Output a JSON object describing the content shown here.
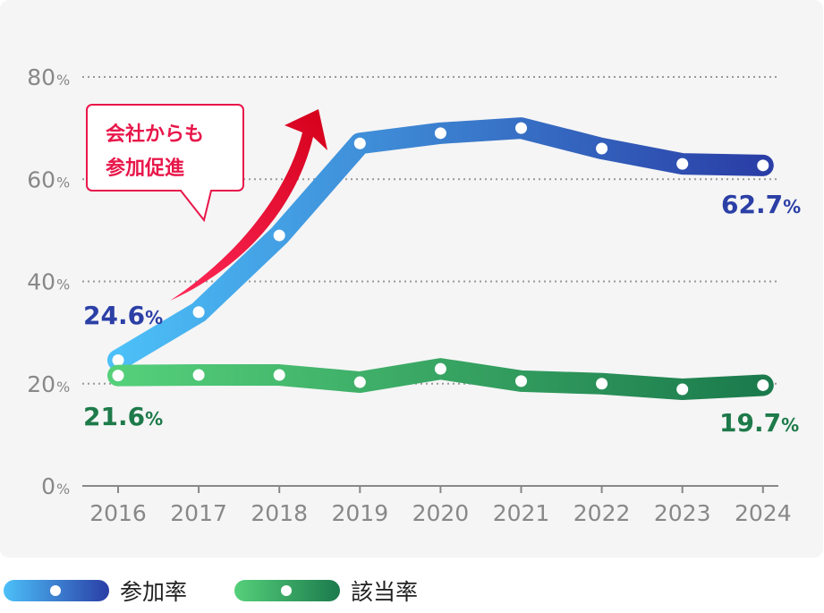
{
  "chart_data": {
    "type": "line",
    "title": "",
    "xlabel": "",
    "ylabel": "",
    "categories": [
      "2016",
      "2017",
      "2018",
      "2019",
      "2020",
      "2021",
      "2022",
      "2023",
      "2024"
    ],
    "ylim": [
      0,
      80
    ],
    "yticks": [
      {
        "value": 0,
        "label": "0"
      },
      {
        "value": 20,
        "label": "20"
      },
      {
        "value": 40,
        "label": "40"
      },
      {
        "value": 60,
        "label": "60"
      },
      {
        "value": 80,
        "label": "80"
      }
    ],
    "ytick_unit": "%",
    "grid": true,
    "legend": "bottom-left",
    "series": [
      {
        "name": "参加率",
        "values": [
          24.6,
          34,
          49,
          67,
          69,
          70,
          66,
          63,
          62.7
        ],
        "color_start": "#4cc0f8",
        "color_end": "#2a3ea6",
        "label_color": "#2b3fa6",
        "first_label": "24.6",
        "last_label": "62.7"
      },
      {
        "name": "該当率",
        "values": [
          21.6,
          21.7,
          21.7,
          20.3,
          22.9,
          20.5,
          20.0,
          18.9,
          19.7
        ],
        "color_start": "#55d07a",
        "color_end": "#1b7a4c",
        "label_color": "#1e7a4a",
        "first_label": "21.6",
        "last_label": "19.7"
      }
    ],
    "annotation": {
      "lines": [
        "会社からも",
        "参加促進"
      ],
      "color": "#e8174a"
    }
  }
}
